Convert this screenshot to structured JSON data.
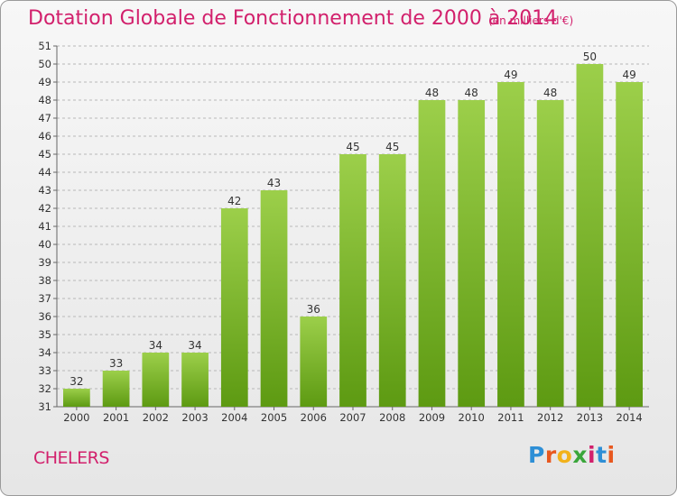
{
  "header": {
    "title": "Dotation Globale de Fonctionnement de 2000 à 2014",
    "subtitle": "(en milliers d'€)"
  },
  "footer": {
    "commune": "CHELERS",
    "logo": {
      "text": "Proxiti",
      "letter_colors": [
        "#2e8fd6",
        "#e8581f",
        "#f2b21b",
        "#3aa63a",
        "#d2206c",
        "#2e8fd6",
        "#e8581f"
      ]
    }
  },
  "colors": {
    "title": "#d2206c",
    "bar_light": "#9ccf4a",
    "bar_dark": "#5d9a12",
    "grid": "#b8b8b8"
  },
  "chart_data": {
    "type": "bar",
    "categories": [
      "2000",
      "2001",
      "2002",
      "2003",
      "2004",
      "2005",
      "2006",
      "2007",
      "2008",
      "2009",
      "2010",
      "2011",
      "2012",
      "2013",
      "2014"
    ],
    "values": [
      32,
      33,
      34,
      34,
      42,
      43,
      36,
      45,
      45,
      48,
      48,
      49,
      48,
      50,
      49
    ],
    "ylim": [
      31,
      51
    ],
    "yticks": [
      31,
      32,
      33,
      34,
      35,
      36,
      37,
      38,
      39,
      40,
      41,
      42,
      43,
      44,
      45,
      46,
      47,
      48,
      49,
      50,
      51
    ],
    "grid": true,
    "grid_style": "dashed",
    "data_labels": true
  }
}
